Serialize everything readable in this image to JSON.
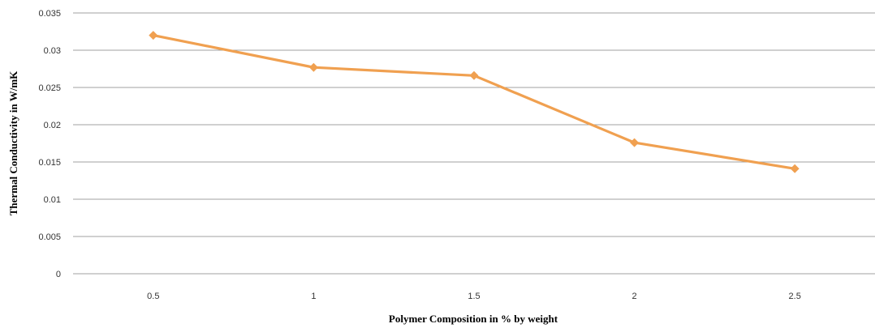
{
  "chart_data": {
    "type": "line",
    "categories": [
      "0.5",
      "1",
      "1.5",
      "2",
      "2.5"
    ],
    "x": [
      0.5,
      1,
      1.5,
      2,
      2.5
    ],
    "series": [
      {
        "values": [
          0.032,
          0.0277,
          0.0266,
          0.0176,
          0.0141
        ],
        "color": "#f0a050"
      }
    ],
    "xlabel": "Polymer Composition in % by weight",
    "ylabel": "Thermal Conductivity in W/mK",
    "ylim": [
      0,
      0.035
    ],
    "yticks": [
      "0",
      "0.005",
      "0.01",
      "0.015",
      "0.02",
      "0.025",
      "0.03",
      "0.035"
    ],
    "grid": true,
    "gridline_color": "#a0a0a0",
    "marker": "diamond"
  }
}
